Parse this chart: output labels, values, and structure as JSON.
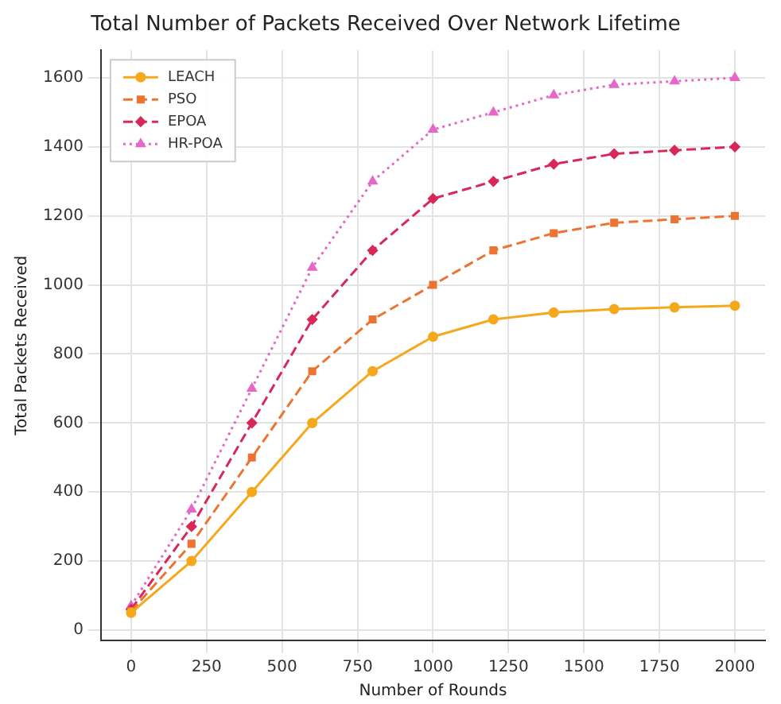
{
  "chart_data": {
    "type": "line",
    "title": "Total Number of Packets Received Over Network Lifetime",
    "xlabel": "Number of Rounds",
    "ylabel": "Total Packets Received",
    "x": [
      0,
      200,
      400,
      600,
      800,
      1000,
      1200,
      1400,
      1600,
      1800,
      2000
    ],
    "series": [
      {
        "name": "LEACH",
        "color": "#f5a81c",
        "marker": "circle",
        "line_style": "solid",
        "values": [
          50,
          200,
          400,
          600,
          750,
          850,
          900,
          920,
          930,
          935,
          940
        ]
      },
      {
        "name": "PSO",
        "color": "#ec7430",
        "marker": "square",
        "line_style": "dashed",
        "values": [
          55,
          250,
          500,
          750,
          900,
          1000,
          1100,
          1150,
          1180,
          1190,
          1200
        ]
      },
      {
        "name": "EPOA",
        "color": "#d8285a",
        "marker": "diamond",
        "line_style": "dashed",
        "values": [
          60,
          300,
          600,
          900,
          1100,
          1250,
          1300,
          1350,
          1380,
          1390,
          1400
        ]
      },
      {
        "name": "HR-POA",
        "color": "#e667c8",
        "marker": "triangle",
        "line_style": "dotted",
        "values": [
          70,
          350,
          700,
          1050,
          1300,
          1450,
          1500,
          1550,
          1580,
          1590,
          1600
        ]
      }
    ],
    "xlim": [
      -100,
      2100
    ],
    "ylim": [
      -30,
      1680
    ],
    "xticks": [
      0,
      250,
      500,
      750,
      1000,
      1250,
      1500,
      1750,
      2000
    ],
    "yticks": [
      0,
      200,
      400,
      600,
      800,
      1000,
      1200,
      1400,
      1600
    ],
    "grid": true,
    "legend": "top left"
  }
}
